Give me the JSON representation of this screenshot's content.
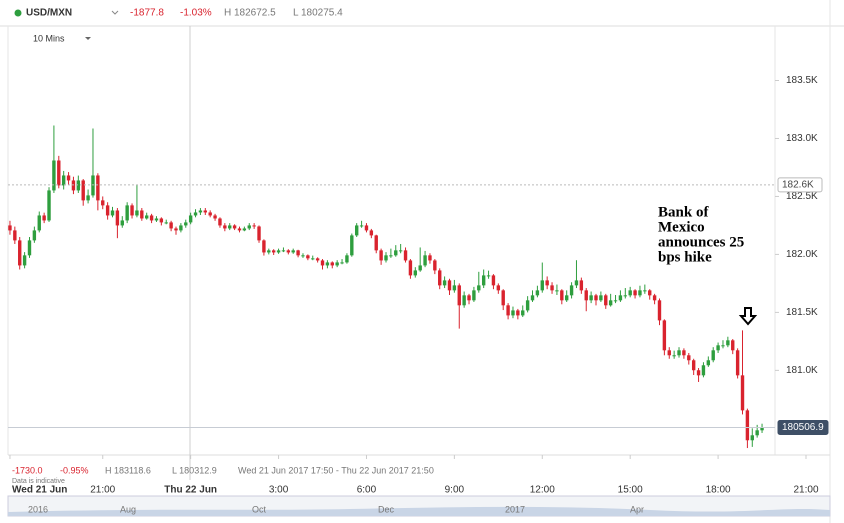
{
  "header": {
    "symbol": "USD/MXN",
    "change": "-1877.8",
    "change_pct": "-1.03%",
    "high": "H 182672.5",
    "low": "L 180275.4",
    "interval": "10 Mins"
  },
  "chart_data": {
    "type": "candlestick",
    "up_color": "#2e9e3e",
    "down_color": "#d9232e",
    "annotation": [
      "Bank of",
      "Mexico",
      "announces 25",
      "bps hike"
    ],
    "ylim": [
      180270,
      183970
    ],
    "yticks": [
      {
        "value": 181000,
        "label": "181.0K"
      },
      {
        "value": 181500,
        "label": "181.5K"
      },
      {
        "value": 182000,
        "label": "182.0K"
      },
      {
        "value": 182500,
        "label": "182.5K"
      },
      {
        "value": 183000,
        "label": "183.0K"
      },
      {
        "value": 183500,
        "label": "183.5K"
      }
    ],
    "xlim": [
      -0.4,
      163
    ],
    "xticks": [
      {
        "value": 0,
        "label": "Wed 21 Jun"
      },
      {
        "value": 19,
        "label": "21:00"
      },
      {
        "value": 37,
        "label": "Thu 22 Jun"
      },
      {
        "value": 55,
        "label": "3:00"
      },
      {
        "value": 73,
        "label": "6:00"
      },
      {
        "value": 91,
        "label": "9:00"
      },
      {
        "value": 109,
        "label": "12:00"
      },
      {
        "value": 127,
        "label": "15:00"
      },
      {
        "value": 145,
        "label": "18:00"
      },
      {
        "value": 163,
        "label": "21:00"
      }
    ],
    "markers": [
      {
        "value": 182600,
        "label": "182.6K"
      },
      {
        "value": 180506.9,
        "label": "180506.9"
      }
    ],
    "candles": [
      [
        182250,
        182290,
        182170,
        182207
      ],
      [
        182207,
        182240,
        182090,
        182121
      ],
      [
        182121,
        182150,
        181870,
        181905
      ],
      [
        181905,
        182020,
        181880,
        181992
      ],
      [
        181992,
        182150,
        181970,
        182121
      ],
      [
        182121,
        182240,
        182100,
        182207
      ],
      [
        182207,
        182370,
        182190,
        182336
      ],
      [
        182336,
        182360,
        182270,
        182293
      ],
      [
        182293,
        182580,
        182280,
        182552
      ],
      [
        182552,
        183112,
        182530,
        182810
      ],
      [
        182810,
        182850,
        182570,
        182595
      ],
      [
        182595,
        182720,
        182560,
        182681
      ],
      [
        182681,
        182710,
        182600,
        182638
      ],
      [
        182638,
        182670,
        182520,
        182552
      ],
      [
        182552,
        182680,
        182530,
        182638
      ],
      [
        182638,
        182650,
        182420,
        182466
      ],
      [
        182466,
        182560,
        182440,
        182509
      ],
      [
        182509,
        183086,
        182490,
        182681
      ],
      [
        182681,
        182700,
        182380,
        182466
      ],
      [
        182466,
        182500,
        182390,
        182423
      ],
      [
        182423,
        182450,
        182300,
        182336
      ],
      [
        182336,
        182410,
        182320,
        182379
      ],
      [
        182379,
        182400,
        182140,
        182250
      ],
      [
        182250,
        182330,
        182230,
        182293
      ],
      [
        182293,
        182450,
        182270,
        182423
      ],
      [
        182423,
        182440,
        182310,
        182336
      ],
      [
        182336,
        182600,
        182320,
        182379
      ],
      [
        182379,
        182400,
        182290,
        182310
      ],
      [
        182310,
        182360,
        182300,
        182336
      ],
      [
        182336,
        182350,
        182270,
        182293
      ],
      [
        182293,
        182330,
        182280,
        182310
      ],
      [
        182310,
        182320,
        182250,
        182276
      ],
      [
        182276,
        182300,
        182260,
        182276
      ],
      [
        182276,
        182290,
        182200,
        182224
      ],
      [
        182224,
        182240,
        182170,
        182207
      ],
      [
        182207,
        182270,
        182190,
        182250
      ],
      [
        182250,
        182300,
        182230,
        182276
      ],
      [
        182276,
        182360,
        182260,
        182336
      ],
      [
        182336,
        182390,
        182320,
        182362
      ],
      [
        182362,
        182400,
        182340,
        182379
      ],
      [
        182379,
        182400,
        182340,
        182362
      ],
      [
        182362,
        182380,
        182320,
        182336
      ],
      [
        182336,
        182350,
        182290,
        182310
      ],
      [
        182310,
        182320,
        182230,
        182250
      ],
      [
        182250,
        182270,
        182200,
        182224
      ],
      [
        182224,
        182270,
        182210,
        182250
      ],
      [
        182250,
        182260,
        182210,
        182224
      ],
      [
        182224,
        182240,
        182190,
        182207
      ],
      [
        182207,
        182240,
        182200,
        182224
      ],
      [
        182224,
        182270,
        182210,
        182250
      ],
      [
        182250,
        182270,
        182220,
        182241
      ],
      [
        182241,
        182250,
        182100,
        182121
      ],
      [
        182121,
        182130,
        181990,
        182017
      ],
      [
        182017,
        182050,
        182000,
        182035
      ],
      [
        182035,
        182045,
        181995,
        182017
      ],
      [
        182017,
        182050,
        182005,
        182035
      ],
      [
        182035,
        182060,
        182020,
        182035
      ],
      [
        182035,
        182045,
        182000,
        182017
      ],
      [
        182017,
        182050,
        182005,
        182035
      ],
      [
        182035,
        182040,
        181975,
        181992
      ],
      [
        181992,
        182010,
        181970,
        181992
      ],
      [
        181992,
        182000,
        181950,
        181966
      ],
      [
        181966,
        181990,
        181950,
        181966
      ],
      [
        181966,
        181975,
        181930,
        181948
      ],
      [
        181948,
        181960,
        181870,
        181905
      ],
      [
        181905,
        181950,
        181880,
        181931
      ],
      [
        181931,
        181940,
        181880,
        181905
      ],
      [
        181905,
        181950,
        181890,
        181931
      ],
      [
        181931,
        181960,
        181915,
        181931
      ],
      [
        181931,
        182010,
        181920,
        181992
      ],
      [
        181992,
        182180,
        181980,
        182164
      ],
      [
        182164,
        182270,
        182150,
        182250
      ],
      [
        182250,
        182290,
        182230,
        182250
      ],
      [
        182250,
        182270,
        182190,
        182207
      ],
      [
        182207,
        182220,
        182140,
        182164
      ],
      [
        182164,
        182170,
        182010,
        182035
      ],
      [
        182035,
        182050,
        181910,
        181948
      ],
      [
        181948,
        182020,
        181930,
        181992
      ],
      [
        181992,
        182050,
        181970,
        181992
      ],
      [
        181992,
        182080,
        181980,
        182035
      ],
      [
        182035,
        182090,
        182010,
        182035
      ],
      [
        182035,
        182060,
        181930,
        181948
      ],
      [
        181948,
        181960,
        181790,
        181819
      ],
      [
        181819,
        181890,
        181800,
        181862
      ],
      [
        181862,
        182060,
        181850,
        181905
      ],
      [
        181905,
        182030,
        181890,
        181992
      ],
      [
        181992,
        182010,
        181920,
        181948
      ],
      [
        181948,
        181960,
        181830,
        181862
      ],
      [
        181862,
        181880,
        181700,
        181733
      ],
      [
        181733,
        181810,
        181710,
        181776
      ],
      [
        181776,
        181790,
        181650,
        181690
      ],
      [
        181690,
        181780,
        181670,
        181733
      ],
      [
        181733,
        181750,
        181360,
        181561
      ],
      [
        181561,
        181680,
        181540,
        181647
      ],
      [
        181647,
        181660,
        181570,
        181604
      ],
      [
        181604,
        181720,
        181590,
        181690
      ],
      [
        181690,
        181850,
        181670,
        181733
      ],
      [
        181733,
        181870,
        181710,
        181819
      ],
      [
        181819,
        181860,
        181790,
        181819
      ],
      [
        181819,
        181830,
        181700,
        181733
      ],
      [
        181733,
        181750,
        181660,
        181690
      ],
      [
        181690,
        181700,
        181520,
        181561
      ],
      [
        181561,
        181580,
        181440,
        181474
      ],
      [
        181474,
        181550,
        181450,
        181517
      ],
      [
        181517,
        181530,
        181440,
        181474
      ],
      [
        181474,
        181560,
        181460,
        181517
      ],
      [
        181517,
        181640,
        181500,
        181604
      ],
      [
        181604,
        181690,
        181590,
        181647
      ],
      [
        181647,
        181730,
        181630,
        181690
      ],
      [
        181690,
        181930,
        181670,
        181776
      ],
      [
        181776,
        181810,
        181700,
        181733
      ],
      [
        181733,
        181760,
        181660,
        181690
      ],
      [
        181690,
        181740,
        181650,
        181690
      ],
      [
        181690,
        181700,
        181570,
        181604
      ],
      [
        181604,
        181690,
        181590,
        181647
      ],
      [
        181647,
        181760,
        181620,
        181733
      ],
      [
        181733,
        181950,
        181710,
        181776
      ],
      [
        181776,
        181800,
        181660,
        181690
      ],
      [
        181690,
        181710,
        181510,
        181604
      ],
      [
        181604,
        181680,
        181580,
        181647
      ],
      [
        181647,
        181660,
        181560,
        181604
      ],
      [
        181604,
        181680,
        181590,
        181647
      ],
      [
        181647,
        181660,
        181530,
        181561
      ],
      [
        181561,
        181660,
        181550,
        181604
      ],
      [
        181604,
        181650,
        181580,
        181604
      ],
      [
        181604,
        181690,
        181590,
        181647
      ],
      [
        181647,
        181710,
        181620,
        181647
      ],
      [
        181647,
        181720,
        181630,
        181690
      ],
      [
        181690,
        181700,
        181620,
        181647
      ],
      [
        181647,
        181730,
        181630,
        181690
      ],
      [
        181690,
        181740,
        181660,
        181690
      ],
      [
        181690,
        181700,
        181610,
        181647
      ],
      [
        181647,
        181660,
        181570,
        181604
      ],
      [
        181604,
        181620,
        181390,
        181431
      ],
      [
        181431,
        181440,
        181130,
        181173
      ],
      [
        181173,
        181200,
        181100,
        181130
      ],
      [
        181130,
        181170,
        181100,
        181130
      ],
      [
        181130,
        181200,
        181110,
        181173
      ],
      [
        181173,
        181190,
        181100,
        181130
      ],
      [
        181130,
        181150,
        181050,
        181087
      ],
      [
        181087,
        181100,
        180960,
        181001
      ],
      [
        181001,
        181020,
        180900,
        180957
      ],
      [
        180957,
        181070,
        180940,
        181044
      ],
      [
        181044,
        181120,
        181030,
        181087
      ],
      [
        181087,
        181200,
        181070,
        181173
      ],
      [
        181173,
        181240,
        181150,
        181216
      ],
      [
        181216,
        181260,
        181190,
        181216
      ],
      [
        181216,
        181290,
        181200,
        181259
      ],
      [
        181259,
        181270,
        181140,
        181173
      ],
      [
        181173,
        181190,
        180930,
        180957
      ],
      [
        180957,
        181345,
        180620,
        180655
      ],
      [
        180655,
        180670,
        180330,
        180397
      ],
      [
        180397,
        180500,
        180340,
        180440
      ],
      [
        180440,
        180530,
        180420,
        180483
      ],
      [
        180483,
        180540,
        180460,
        180506.9
      ]
    ]
  },
  "footer": {
    "change": "-1730.0",
    "change_pct": "-0.95%",
    "high": "H 183118.6",
    "low": "L 180312.9",
    "range": "Wed 21 Jun 2017 17:50 - Thu 22 Jun 2017 21:50",
    "note": "Data is indicative"
  },
  "navigator": {
    "labels": [
      "2016",
      "Aug",
      "Oct",
      "Dec",
      "2017",
      "Apr"
    ]
  }
}
